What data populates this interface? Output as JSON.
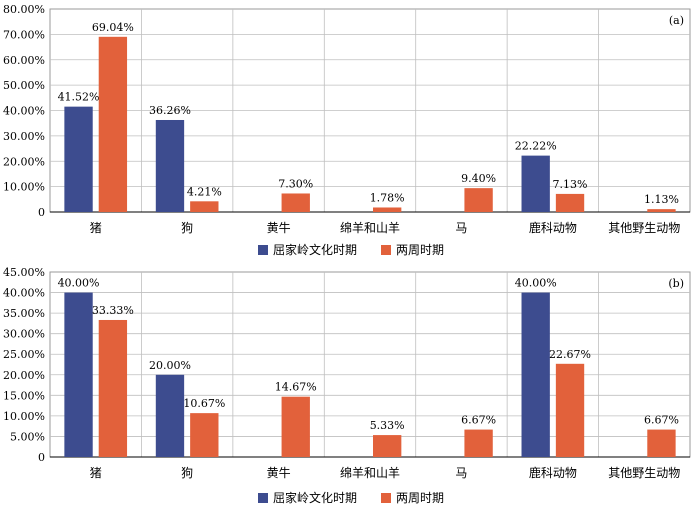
{
  "colors": {
    "series_a": "#3d4c8f",
    "series_b": "#e2613b",
    "grid": "#bfbfbf",
    "axis": "#000000"
  },
  "chart_data": [
    {
      "type": "bar",
      "panel_label": "(a)",
      "categories": [
        "猪",
        "狗",
        "黄牛",
        "绵羊和山羊",
        "马",
        "鹿科动物",
        "其他野生动物"
      ],
      "ylim": [
        0,
        80
      ],
      "ytick_step": 10,
      "grid": true,
      "legend_position": "bottom",
      "tick_labels": [
        "0",
        "10.00%",
        "20.00%",
        "30.00%",
        "40.00%",
        "50.00%",
        "60.00%",
        "70.00%",
        "80.00%"
      ],
      "series": [
        {
          "name": "屈家岭文化时期",
          "values": [
            41.52,
            36.26,
            null,
            null,
            null,
            22.22,
            null
          ],
          "labels": [
            "41.52%",
            "36.26%",
            "",
            "",
            "",
            "22.22%",
            ""
          ]
        },
        {
          "name": "两周时期",
          "values": [
            69.04,
            4.21,
            7.3,
            1.78,
            9.4,
            7.13,
            1.13
          ],
          "labels": [
            "69.04%",
            "4.21%",
            "7.30%",
            "1.78%",
            "9.40%",
            "7.13%",
            "1.13%"
          ]
        }
      ]
    },
    {
      "type": "bar",
      "panel_label": "(b)",
      "categories": [
        "猪",
        "狗",
        "黄牛",
        "绵羊和山羊",
        "马",
        "鹿科动物",
        "其他野生动物"
      ],
      "ylim": [
        0,
        45
      ],
      "ytick_step": 5,
      "grid": true,
      "legend_position": "bottom",
      "tick_labels": [
        "0",
        "5.00%",
        "10.00%",
        "15.00%",
        "20.00%",
        "25.00%",
        "30.00%",
        "35.00%",
        "40.00%",
        "45.00%"
      ],
      "series": [
        {
          "name": "屈家岭文化时期",
          "values": [
            40.0,
            20.0,
            null,
            null,
            null,
            40.0,
            null
          ],
          "labels": [
            "40.00%",
            "20.00%",
            "",
            "",
            "",
            "40.00%",
            ""
          ]
        },
        {
          "name": "两周时期",
          "values": [
            33.33,
            10.67,
            14.67,
            5.33,
            6.67,
            22.67,
            6.67
          ],
          "labels": [
            "33.33%",
            "10.67%",
            "14.67%",
            "5.33%",
            "6.67%",
            "22.67%",
            "6.67%"
          ]
        }
      ]
    }
  ]
}
